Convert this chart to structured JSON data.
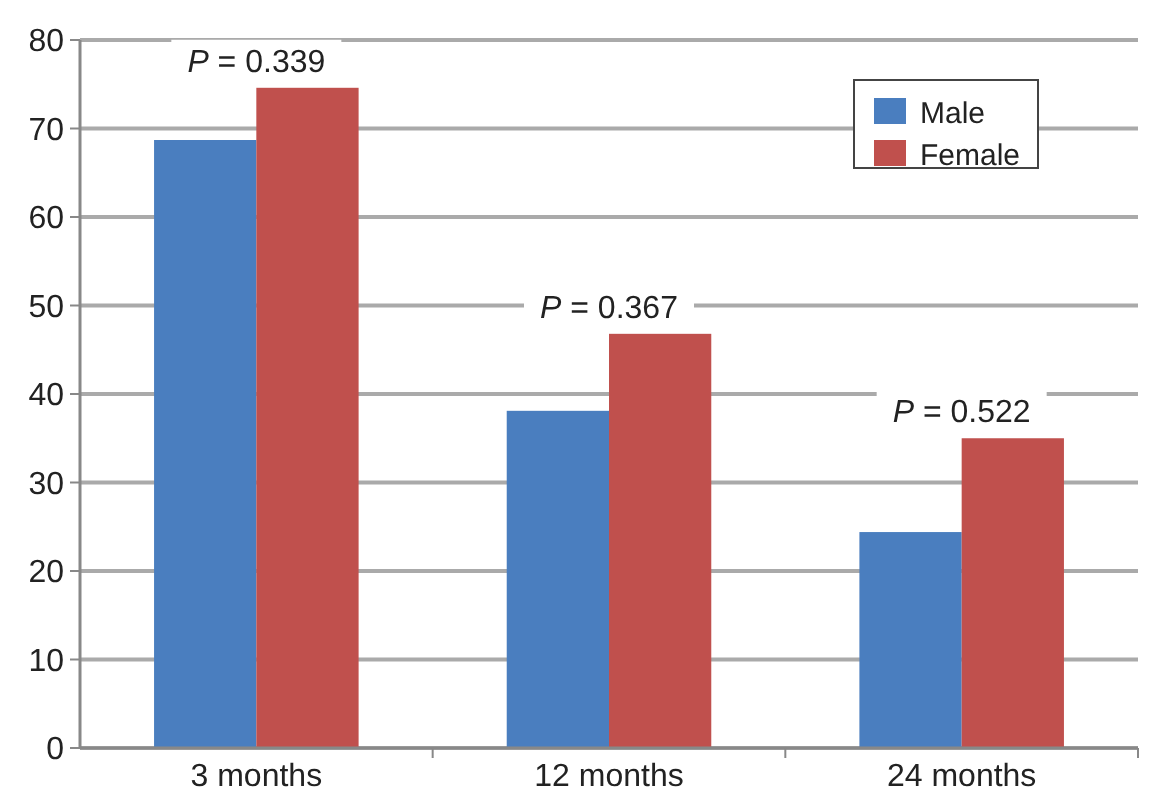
{
  "chart_data": {
    "type": "bar",
    "categories": [
      "3 months",
      "12 months",
      "24 months"
    ],
    "series": [
      {
        "name": "Male",
        "color": "#4a7ebf",
        "values": [
          68.7,
          38.1,
          24.4
        ]
      },
      {
        "name": "Female",
        "color": "#c0504d",
        "values": [
          74.6,
          46.8,
          35.0
        ]
      }
    ],
    "ylim": [
      0,
      80
    ],
    "yticks": [
      0,
      10,
      20,
      30,
      40,
      50,
      60,
      70,
      80
    ],
    "grid": "y",
    "legend": "top right",
    "annotations": [
      {
        "text": "P = 0.339",
        "x": "3 months",
        "y": 74.6
      },
      {
        "text": "P = 0.367",
        "x": "12 months",
        "y": 46.8
      },
      {
        "text": "P = 0.522",
        "x": "24 months",
        "y": 35.0
      }
    ]
  }
}
